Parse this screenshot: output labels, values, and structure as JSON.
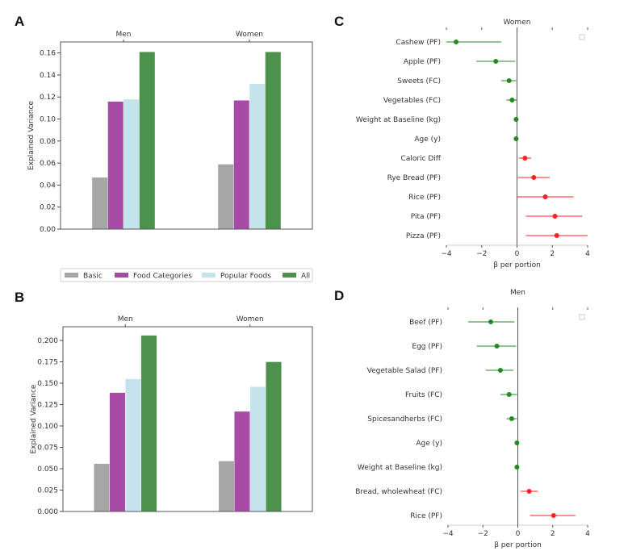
{
  "chart_data": [
    {
      "panel": "A",
      "type": "bar",
      "categories": [
        "Men",
        "Women"
      ],
      "ylabel": "Explained Variance",
      "ylim": [
        0,
        0.17
      ],
      "yticks": [
        "0.00",
        "0.02",
        "0.04",
        "0.06",
        "0.08",
        "0.10",
        "0.12",
        "0.14",
        "0.16"
      ],
      "series": [
        {
          "name": "Basic",
          "color": "#a6a6a6",
          "values": [
            0.047,
            0.059
          ]
        },
        {
          "name": "Food Categories",
          "color": "#a64ca6",
          "values": [
            0.116,
            0.117
          ]
        },
        {
          "name": "Popular Foods",
          "color": "#c5e3ec",
          "values": [
            0.118,
            0.132
          ]
        },
        {
          "name": "All",
          "color": "#4c924c",
          "values": [
            0.161,
            0.161
          ]
        }
      ],
      "legend": [
        "Basic",
        "Food Categories",
        "Popular Foods",
        "All"
      ],
      "legend_position": "bottom"
    },
    {
      "panel": "B",
      "type": "bar",
      "categories": [
        "Men",
        "Women"
      ],
      "ylabel": "Explained Variance",
      "ylim": [
        0,
        0.216
      ],
      "yticks": [
        "0.000",
        "0.025",
        "0.050",
        "0.075",
        "0.100",
        "0.125",
        "0.150",
        "0.175",
        "0.200"
      ],
      "series": [
        {
          "name": "Basic",
          "color": "#a6a6a6",
          "values": [
            0.056,
            0.059
          ]
        },
        {
          "name": "Food Categories",
          "color": "#a64ca6",
          "values": [
            0.139,
            0.117
          ]
        },
        {
          "name": "Popular Foods",
          "color": "#c5e3ec",
          "values": [
            0.155,
            0.146
          ]
        },
        {
          "name": "All",
          "color": "#4c924c",
          "values": [
            0.206,
            0.175
          ]
        }
      ]
    },
    {
      "panel": "C",
      "type": "scatter",
      "title": "Women",
      "xlabel": "β per portion",
      "xlim": [
        -4,
        4
      ],
      "xticks": [
        "−4",
        "−2",
        "0",
        "2",
        "4"
      ],
      "points": [
        {
          "label": "Cashew (PF)",
          "beta": -3.45,
          "ci": [
            -4.0,
            -0.9
          ]
        },
        {
          "label": "Apple (PF)",
          "beta": -1.2,
          "ci": [
            -2.3,
            -0.1
          ]
        },
        {
          "label": "Sweets (FC)",
          "beta": -0.45,
          "ci": [
            -0.9,
            -0.05
          ]
        },
        {
          "label": "Vegetables (FC)",
          "beta": -0.28,
          "ci": [
            -0.6,
            0.0
          ]
        },
        {
          "label": "Weight at Baseline (kg)",
          "beta": -0.05,
          "ci": [
            -0.07,
            -0.03
          ]
        },
        {
          "label": "Age (y)",
          "beta": -0.05,
          "ci": [
            -0.07,
            -0.03
          ]
        },
        {
          "label": "Caloric Diff",
          "beta": 0.45,
          "ci": [
            0.1,
            0.8
          ]
        },
        {
          "label": "Rye Bread (PF)",
          "beta": 0.95,
          "ci": [
            0.05,
            1.85
          ]
        },
        {
          "label": "Rice (PF)",
          "beta": 1.6,
          "ci": [
            0.0,
            3.2
          ]
        },
        {
          "label": "Pita (PF)",
          "beta": 2.15,
          "ci": [
            0.5,
            3.7
          ]
        },
        {
          "label": "Pizza (PF)",
          "beta": 2.25,
          "ci": [
            0.5,
            4.0
          ]
        }
      ],
      "neg_color": "#228b22",
      "pos_color": "#ff2020"
    },
    {
      "panel": "D",
      "type": "scatter",
      "title": "Men",
      "xlabel": "β per portion",
      "xlim": [
        -4,
        4
      ],
      "xticks": [
        "−4",
        "−2",
        "0",
        "2",
        "4"
      ],
      "points": [
        {
          "label": "Beef (PF)",
          "beta": -1.55,
          "ci": [
            -2.85,
            -0.2
          ]
        },
        {
          "label": "Egg (PF)",
          "beta": -1.2,
          "ci": [
            -2.35,
            -0.1
          ]
        },
        {
          "label": "Vegetable Salad (PF)",
          "beta": -1.0,
          "ci": [
            -1.85,
            -0.25
          ]
        },
        {
          "label": "Fruits (FC)",
          "beta": -0.5,
          "ci": [
            -1.0,
            -0.05
          ]
        },
        {
          "label": "Spicesandherbs (FC)",
          "beta": -0.35,
          "ci": [
            -0.65,
            -0.05
          ]
        },
        {
          "label": "Age (y)",
          "beta": -0.05,
          "ci": [
            -0.07,
            -0.03
          ]
        },
        {
          "label": "Weight at Baseline (kg)",
          "beta": -0.05,
          "ci": [
            -0.07,
            -0.03
          ]
        },
        {
          "label": "Bread, wholewheat (FC)",
          "beta": 0.65,
          "ci": [
            0.15,
            1.15
          ]
        },
        {
          "label": "Rice (PF)",
          "beta": 2.05,
          "ci": [
            0.7,
            3.3
          ]
        }
      ],
      "neg_color": "#228b22",
      "pos_color": "#ff2020"
    }
  ]
}
